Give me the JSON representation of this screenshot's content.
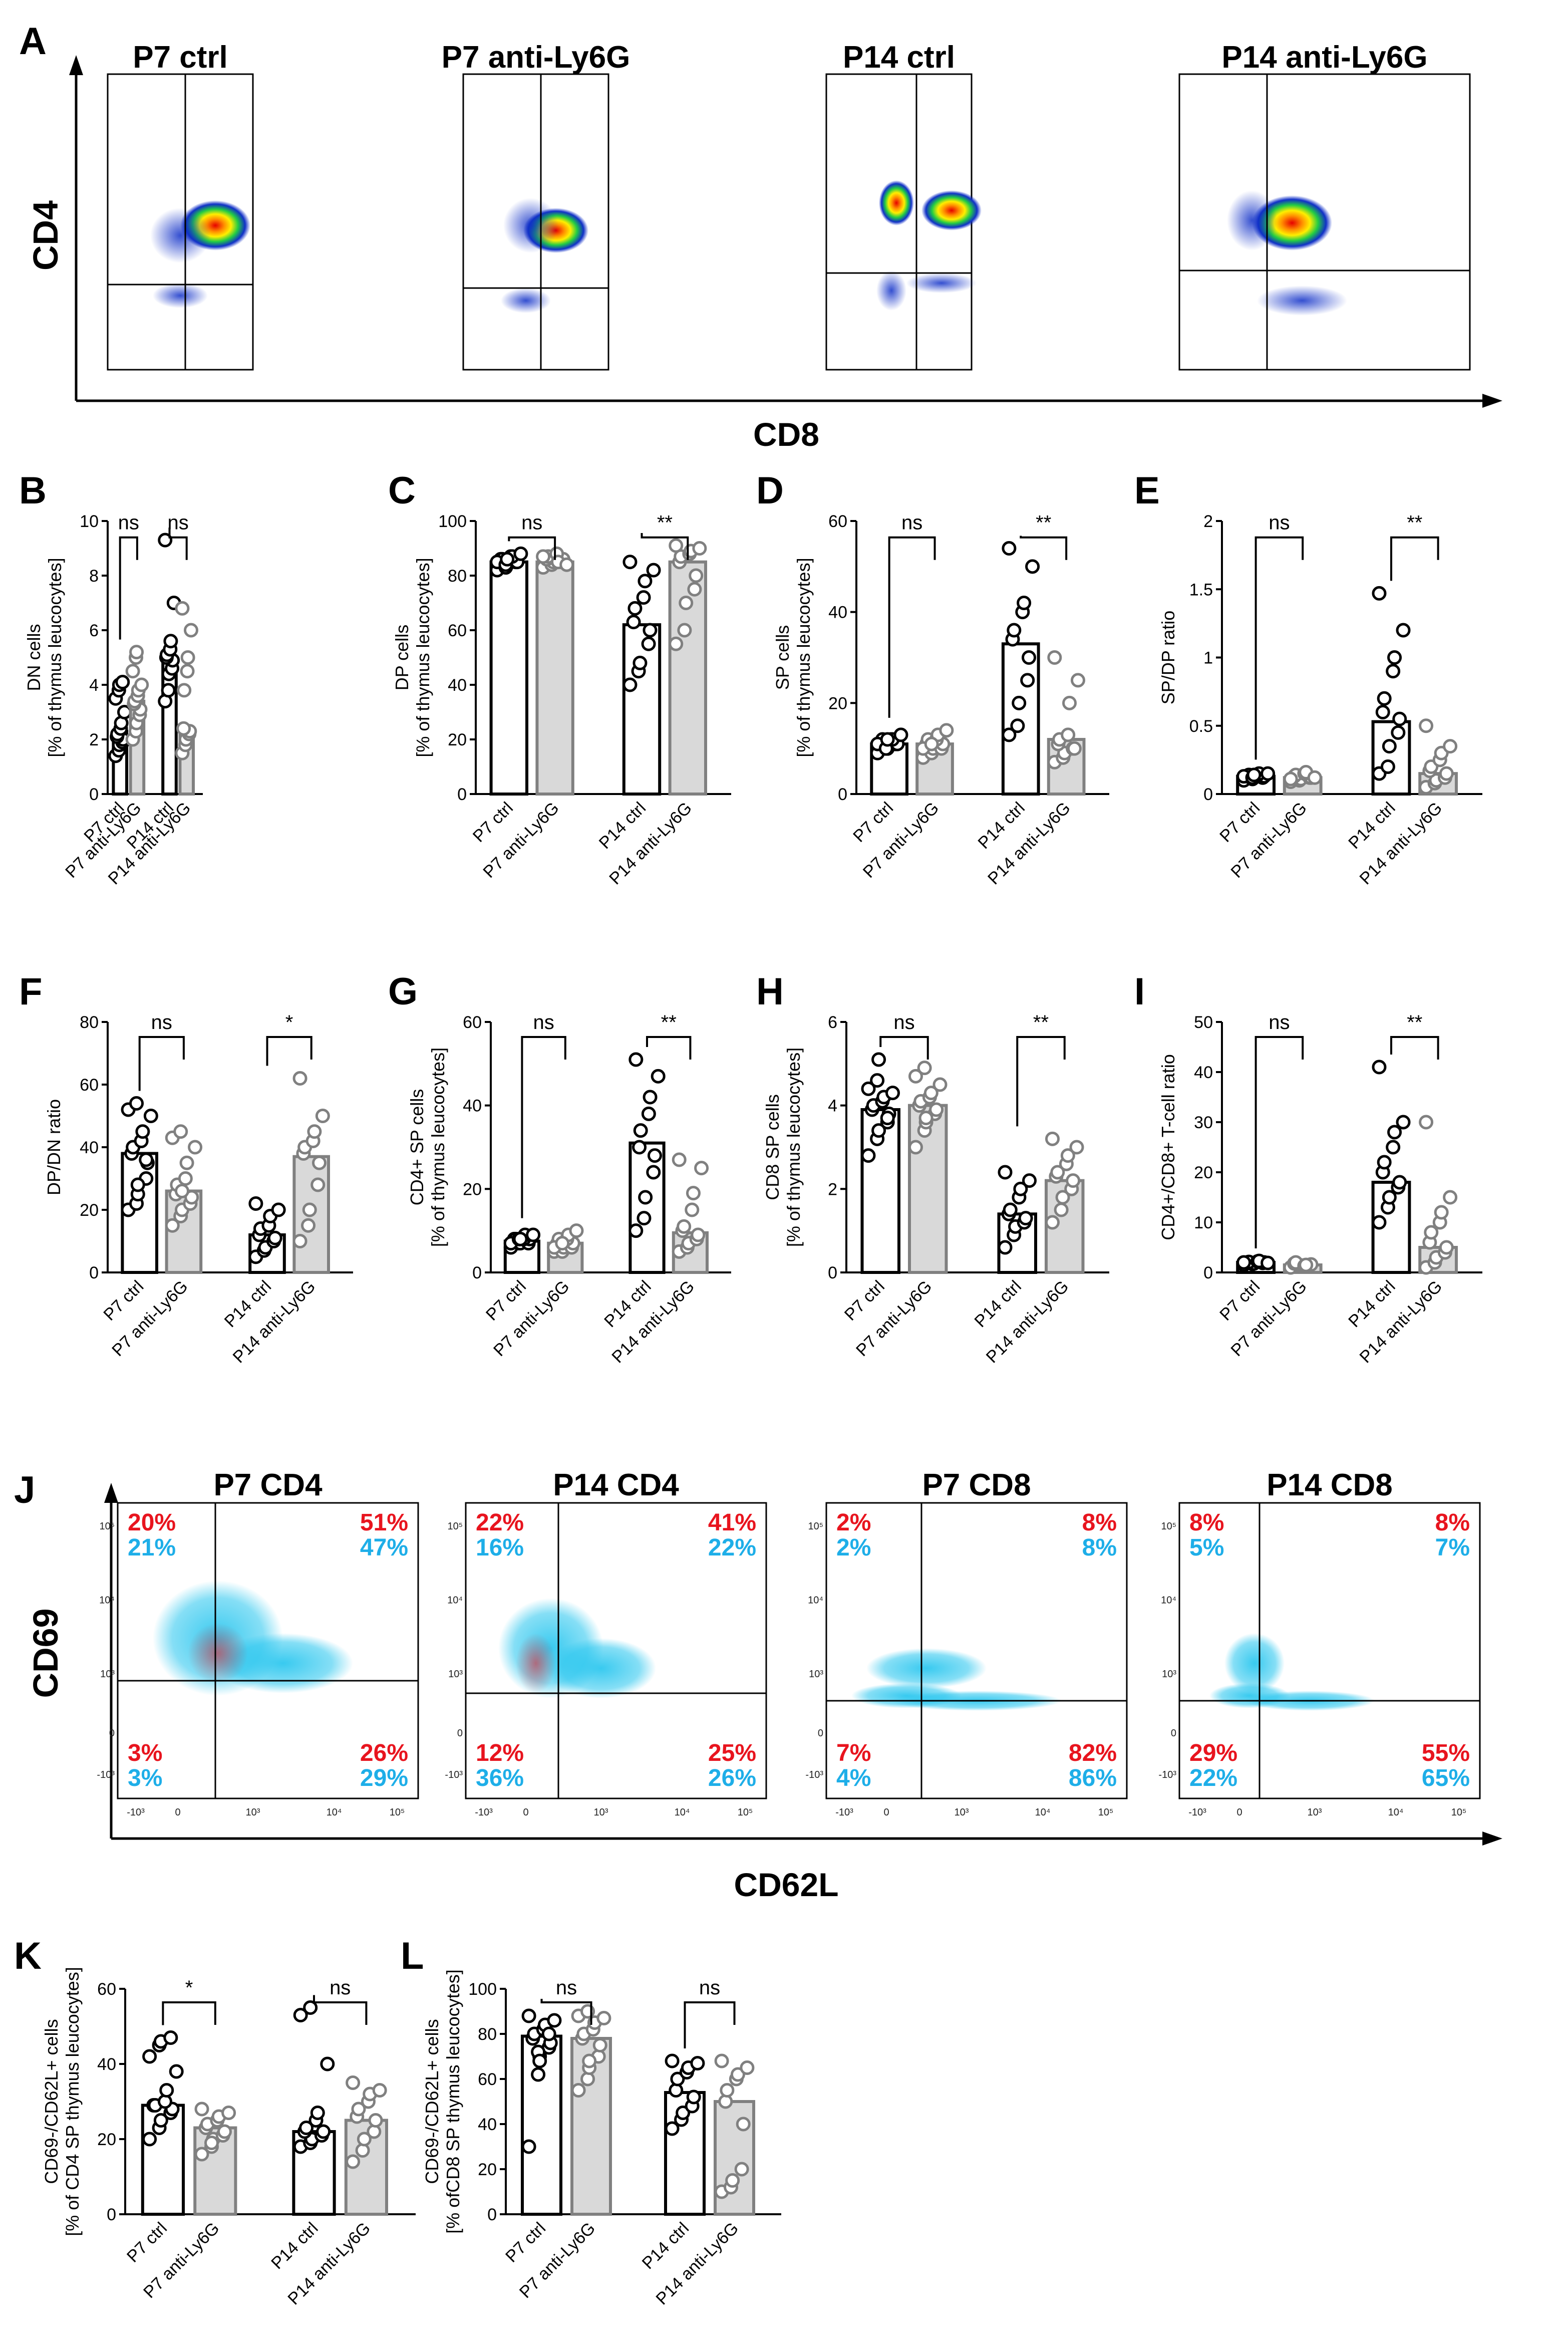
{
  "section_A": {
    "letter": "A",
    "y_axis": "CD4",
    "x_axis": "CD8",
    "plots": [
      {
        "title": "P7 ctrl"
      },
      {
        "title": "P7 anti-Ly6G"
      },
      {
        "title": "P14 ctrl"
      },
      {
        "title": "P14 anti-Ly6G"
      }
    ]
  },
  "section_J": {
    "letter": "J",
    "y_axis": "CD69",
    "x_axis": "CD62L",
    "plots": [
      {
        "title": "P7 CD4",
        "ul_red": "20%",
        "ul_blue": "21%",
        "ur_red": "51%",
        "ur_blue": "47%",
        "ll_red": "3%",
        "ll_blue": "3%",
        "lr_red": "26%",
        "lr_blue": "29%"
      },
      {
        "title": "P14 CD4",
        "ul_red": "22%",
        "ul_blue": "16%",
        "ur_red": "41%",
        "ur_blue": "22%",
        "ll_red": "12%",
        "ll_blue": "36%",
        "lr_red": "25%",
        "lr_blue": "26%"
      },
      {
        "title": "P7 CD8",
        "ul_red": "2%",
        "ul_blue": "2%",
        "ur_red": "8%",
        "ur_blue": "8%",
        "ll_red": "7%",
        "ll_blue": "4%",
        "lr_red": "82%",
        "lr_blue": "86%"
      },
      {
        "title": "P14 CD8",
        "ul_red": "8%",
        "ul_blue": "5%",
        "ur_red": "8%",
        "ur_blue": "7%",
        "ll_red": "29%",
        "ll_blue": "22%",
        "lr_red": "55%",
        "lr_blue": "65%"
      }
    ],
    "x_ticks": [
      "-10³",
      "0",
      "10³",
      "10⁴",
      "10⁵"
    ],
    "y_ticks": [
      "10⁵",
      "10⁴",
      "10³",
      "0",
      "-10³"
    ]
  },
  "colors": {
    "ctrl_fill": "#ffffff",
    "ctrl_edge": "#000000",
    "treat_fill": "#d9d9d9",
    "treat_edge": "#808080",
    "percent_red": "#e8141e",
    "percent_blue": "#1eaee8"
  },
  "chart_data": [
    {
      "id": "B",
      "type": "bar",
      "ylabel": "DN cells\n[% of thymus leucocytes]",
      "ylim": [
        0,
        10
      ],
      "yticks": [
        0,
        2,
        4,
        6,
        8,
        10
      ],
      "categories": [
        "P7 ctrl",
        "P7 anti-Ly6G",
        "P14 ctrl",
        "P14 anti-Ly6G"
      ],
      "values": [
        2.3,
        3.4,
        5.0,
        2.3
      ],
      "points": [
        [
          1.4,
          1.6,
          1.8,
          1.9,
          2.0,
          2.1,
          2.2,
          2.4,
          2.6,
          3.0,
          3.5,
          3.8,
          4.0,
          4.1
        ],
        [
          2.0,
          2.3,
          2.6,
          2.9,
          3.1,
          3.3,
          3.4,
          3.6,
          3.8,
          4.0,
          4.5,
          5.0,
          5.2
        ],
        [
          3.4,
          3.8,
          4.4,
          4.6,
          4.9,
          5.0,
          5.1,
          5.3,
          5.6,
          7.0,
          9.3
        ],
        [
          1.5,
          1.8,
          2.0,
          2.2,
          2.3,
          2.4,
          3.8,
          4.5,
          5.0,
          6.0,
          6.8
        ]
      ],
      "sig": [
        "ns",
        "ns"
      ]
    },
    {
      "id": "C",
      "type": "bar",
      "ylabel": "DP cells\n[% of thymus leucocytes]",
      "ylim": [
        0,
        100
      ],
      "yticks": [
        0,
        20,
        40,
        60,
        80,
        100
      ],
      "categories": [
        "P7 ctrl",
        "P7 anti-Ly6G",
        "P14 ctrl",
        "P14 anti-Ly6G"
      ],
      "values": [
        85,
        85,
        62,
        85
      ],
      "points": [
        [
          82,
          83,
          84,
          85,
          85,
          86,
          86,
          87,
          87,
          88,
          85,
          84,
          86
        ],
        [
          83,
          84,
          85,
          85,
          86,
          86,
          87,
          88,
          85,
          84,
          87
        ],
        [
          40,
          45,
          48,
          55,
          60,
          63,
          68,
          72,
          78,
          82,
          85
        ],
        [
          55,
          60,
          70,
          75,
          80,
          85,
          87,
          88,
          89,
          90,
          91
        ]
      ],
      "sig": [
        "ns",
        "**"
      ]
    },
    {
      "id": "D",
      "type": "bar",
      "ylabel": "SP cells\n[% of thymus leucocytes]",
      "ylim": [
        0,
        60
      ],
      "yticks": [
        0,
        20,
        40,
        60
      ],
      "categories": [
        "P7 ctrl",
        "P7 anti-Ly6G",
        "P14 ctrl",
        "P14 anti-Ly6G"
      ],
      "values": [
        11,
        11,
        33,
        12
      ],
      "points": [
        [
          9,
          10,
          10,
          11,
          11,
          11,
          12,
          12,
          12,
          13,
          11,
          10,
          12
        ],
        [
          8,
          9,
          10,
          10,
          11,
          11,
          12,
          12,
          13,
          14,
          10,
          11
        ],
        [
          13,
          15,
          20,
          25,
          30,
          34,
          36,
          40,
          42,
          50,
          54
        ],
        [
          7,
          8,
          9,
          10,
          10,
          11,
          12,
          13,
          20,
          25,
          30
        ]
      ],
      "sig": [
        "ns",
        "**"
      ]
    },
    {
      "id": "E",
      "type": "bar",
      "ylabel": "SP/DP ratio",
      "ylim": [
        0,
        2
      ],
      "yticks": [
        0,
        0.5,
        1.0,
        1.5,
        2.0
      ],
      "categories": [
        "P7 ctrl",
        "P7 anti-Ly6G",
        "P14 ctrl",
        "P14 anti-Ly6G"
      ],
      "values": [
        0.13,
        0.12,
        0.53,
        0.15
      ],
      "points": [
        [
          0.1,
          0.11,
          0.12,
          0.12,
          0.13,
          0.13,
          0.14,
          0.14,
          0.15,
          0.15,
          0.13,
          0.12,
          0.14
        ],
        [
          0.09,
          0.1,
          0.11,
          0.12,
          0.12,
          0.13,
          0.14,
          0.15,
          0.16,
          0.12,
          0.11
        ],
        [
          0.15,
          0.2,
          0.35,
          0.45,
          0.55,
          0.6,
          0.7,
          0.9,
          1.0,
          1.2,
          1.47
        ],
        [
          0.05,
          0.08,
          0.1,
          0.12,
          0.15,
          0.17,
          0.2,
          0.25,
          0.3,
          0.35,
          0.5
        ]
      ],
      "sig": [
        "ns",
        "**"
      ]
    },
    {
      "id": "F",
      "type": "bar",
      "ylabel": "DP/DN ratio",
      "ylim": [
        0,
        80
      ],
      "yticks": [
        0,
        20,
        40,
        60,
        80
      ],
      "categories": [
        "P7 ctrl",
        "P7 anti-Ly6G",
        "P14 ctrl",
        "P14 anti-Ly6G"
      ],
      "values": [
        38,
        26,
        12,
        37
      ],
      "points": [
        [
          20,
          22,
          25,
          30,
          35,
          38,
          40,
          42,
          45,
          50,
          52,
          54,
          28,
          36
        ],
        [
          15,
          18,
          20,
          22,
          24,
          25,
          28,
          30,
          35,
          40,
          43,
          45,
          26
        ],
        [
          5,
          7,
          8,
          10,
          11,
          12,
          14,
          15,
          18,
          20,
          22
        ],
        [
          10,
          15,
          20,
          28,
          35,
          38,
          40,
          42,
          45,
          50,
          62
        ]
      ],
      "sig": [
        "ns",
        "*"
      ]
    },
    {
      "id": "G",
      "type": "bar",
      "ylabel": "CD4+ SP cells\n[% of thymus leucocytes]",
      "ylim": [
        0,
        60
      ],
      "yticks": [
        0,
        20,
        40,
        60
      ],
      "categories": [
        "P7 ctrl",
        "P7 anti-Ly6G",
        "P14 ctrl",
        "P14 anti-Ly6G"
      ],
      "values": [
        7.5,
        7,
        31,
        9.5
      ],
      "points": [
        [
          6,
          7,
          7,
          7,
          8,
          8,
          8,
          8,
          9,
          9,
          7,
          8,
          8
        ],
        [
          5,
          5,
          6,
          6,
          7,
          7,
          8,
          8,
          9,
          10,
          6,
          7
        ],
        [
          10,
          13,
          18,
          24,
          28,
          30,
          34,
          38,
          42,
          47,
          51
        ],
        [
          5,
          6,
          7,
          8,
          9,
          10,
          11,
          15,
          19,
          25,
          27
        ]
      ],
      "sig": [
        "ns",
        "**"
      ]
    },
    {
      "id": "H",
      "type": "bar",
      "ylabel": "CD8  SP cells\n[% of thymus leucocytes]",
      "ylim": [
        0,
        6
      ],
      "yticks": [
        0,
        2,
        4,
        6
      ],
      "categories": [
        "P7 ctrl",
        "P7 anti-Ly6G",
        "P14 ctrl",
        "P14 anti-Ly6G"
      ],
      "values": [
        3.9,
        4.0,
        1.4,
        2.2
      ],
      "points": [
        [
          2.8,
          3.2,
          3.4,
          3.6,
          3.8,
          3.9,
          4.0,
          4.1,
          4.2,
          4.3,
          4.4,
          4.6,
          5.1,
          3.7
        ],
        [
          3.0,
          3.4,
          3.6,
          3.8,
          3.9,
          4.0,
          4.1,
          4.2,
          4.3,
          4.5,
          4.7,
          4.9,
          3.7
        ],
        [
          0.6,
          0.9,
          1.1,
          1.2,
          1.3,
          1.4,
          1.5,
          1.8,
          2.0,
          2.2,
          2.4
        ],
        [
          1.2,
          1.5,
          1.8,
          2.0,
          2.2,
          2.3,
          2.4,
          2.6,
          2.8,
          3.0,
          3.2
        ]
      ],
      "sig": [
        "ns",
        "**"
      ]
    },
    {
      "id": "I",
      "type": "bar",
      "ylabel": "CD4+/CD8+ T-cell ratio",
      "ylim": [
        0,
        50
      ],
      "yticks": [
        0,
        10,
        20,
        30,
        40,
        50
      ],
      "categories": [
        "P7 ctrl",
        "P7 anti-Ly6G",
        "P14 ctrl",
        "P14 anti-Ly6G"
      ],
      "values": [
        2,
        1.5,
        18,
        5
      ],
      "points": [
        [
          1.5,
          1.7,
          1.8,
          1.9,
          2.0,
          2.0,
          2.1,
          2.2,
          2.3,
          1.9,
          2.0
        ],
        [
          1.0,
          1.2,
          1.4,
          1.5,
          1.6,
          1.8,
          2.0,
          1.3,
          1.5
        ],
        [
          10,
          13,
          15,
          17,
          18,
          20,
          22,
          25,
          28,
          30,
          41
        ],
        [
          1,
          2,
          3,
          4,
          5,
          6,
          8,
          10,
          12,
          15,
          30
        ]
      ],
      "sig": [
        "ns",
        "**"
      ]
    },
    {
      "id": "K",
      "type": "bar",
      "ylabel": "CD69-/CD62L+ cells\n[% of CD4  SP thymus leucocytes]",
      "ylim": [
        0,
        60
      ],
      "yticks": [
        0,
        20,
        40,
        60
      ],
      "categories": [
        "P7 ctrl",
        "P7 anti-Ly6G",
        "P14 ctrl",
        "P14 anti-Ly6G"
      ],
      "values": [
        29,
        23,
        22,
        25
      ],
      "points": [
        [
          20,
          23,
          25,
          27,
          28,
          29,
          29,
          30,
          33,
          38,
          42,
          45,
          46,
          47
        ],
        [
          16,
          18,
          20,
          21,
          22,
          23,
          24,
          25,
          26,
          27,
          28,
          19
        ],
        [
          18,
          19,
          20,
          21,
          22,
          22,
          23,
          25,
          27,
          40,
          53,
          55
        ],
        [
          14,
          17,
          20,
          22,
          25,
          26,
          28,
          30,
          32,
          33,
          35
        ]
      ],
      "sig": [
        "*",
        "ns"
      ]
    },
    {
      "id": "L",
      "type": "bar",
      "ylabel": "CD69-/CD62L+ cells\n[% ofCD8 SP thymus leucocytes]",
      "ylim": [
        0,
        100
      ],
      "yticks": [
        0,
        20,
        40,
        60,
        80,
        100
      ],
      "categories": [
        "P7 ctrl",
        "P7 anti-Ly6G",
        "P14 ctrl",
        "P14 anti-Ly6G"
      ],
      "values": [
        79,
        78,
        54,
        50
      ],
      "points": [
        [
          30,
          62,
          70,
          74,
          76,
          78,
          80,
          82,
          84,
          86,
          88,
          72,
          68,
          80
        ],
        [
          55,
          60,
          65,
          70,
          75,
          78,
          80,
          82,
          85,
          87,
          88,
          90,
          68
        ],
        [
          38,
          42,
          45,
          48,
          52,
          55,
          60,
          63,
          65,
          67,
          68
        ],
        [
          10,
          12,
          15,
          20,
          40,
          50,
          55,
          60,
          62,
          65,
          68
        ]
      ],
      "sig": [
        "ns",
        "ns"
      ]
    }
  ]
}
